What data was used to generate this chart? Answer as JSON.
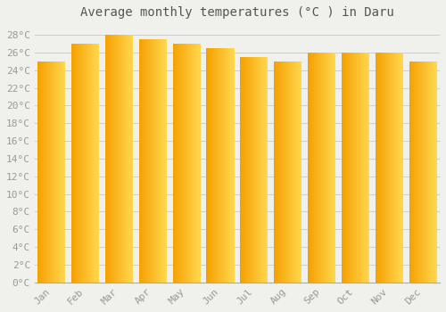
{
  "title": "Average monthly temperatures (°C ) in Daru",
  "months": [
    "Jan",
    "Feb",
    "Mar",
    "Apr",
    "May",
    "Jun",
    "Jul",
    "Aug",
    "Sep",
    "Oct",
    "Nov",
    "Dec"
  ],
  "temperatures": [
    25.0,
    27.0,
    28.0,
    27.5,
    27.0,
    26.5,
    25.5,
    25.0,
    26.0,
    26.0,
    26.0,
    25.0
  ],
  "bar_color_left": "#F5A800",
  "bar_color_right": "#FFD040",
  "bar_color_center": "#FFB800",
  "background_color": "#F0F0EC",
  "grid_color": "#CCCCCC",
  "text_color": "#999999",
  "ylim": [
    0,
    29
  ],
  "yticks": [
    0,
    2,
    4,
    6,
    8,
    10,
    12,
    14,
    16,
    18,
    20,
    22,
    24,
    26,
    28
  ],
  "title_fontsize": 10,
  "tick_fontsize": 8
}
